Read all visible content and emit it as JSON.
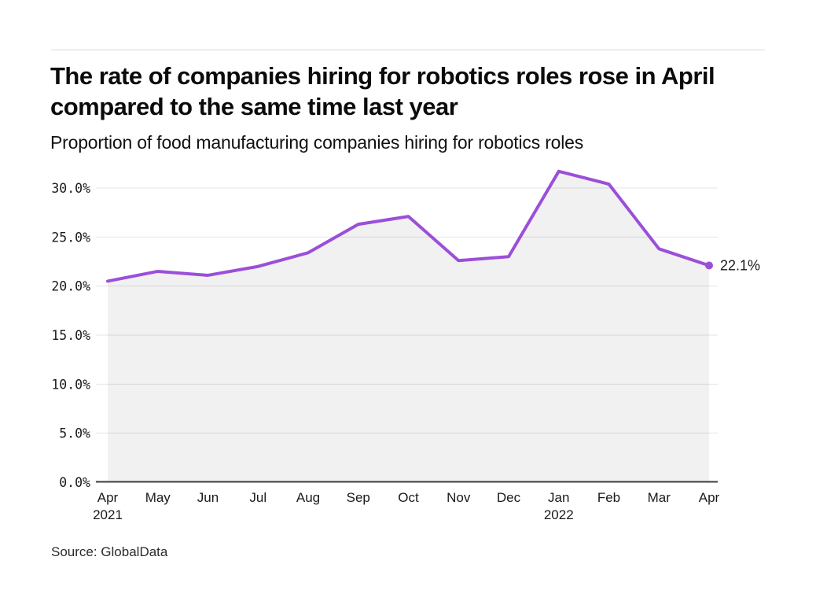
{
  "header": {
    "title": "The rate of companies hiring for robotics roles rose in April compared to the same time last year",
    "subtitle": "Proportion of food manufacturing companies hiring for robotics roles"
  },
  "footer": {
    "source": "Source: GlobalData"
  },
  "chart_data": {
    "type": "area",
    "title": "The rate of companies hiring for robotics roles rose in April compared to the same time last year",
    "subtitle": "Proportion of food manufacturing companies hiring for robotics roles",
    "categories": [
      "Apr 2021",
      "May",
      "Jun",
      "Jul",
      "Aug",
      "Sep",
      "Oct",
      "Nov",
      "Dec",
      "Jan 2022",
      "Feb",
      "Mar",
      "Apr"
    ],
    "values": [
      20.5,
      21.5,
      21.1,
      22.0,
      23.4,
      26.3,
      27.1,
      22.6,
      23.0,
      31.7,
      30.4,
      23.8,
      22.1
    ],
    "xlabel": "",
    "ylabel": "",
    "ylim": [
      0,
      32.5
    ],
    "yticks": [
      0,
      5,
      10,
      15,
      20,
      25,
      30
    ],
    "ytick_labels": [
      "0.0%",
      "5.0%",
      "10.0%",
      "15.0%",
      "20.0%",
      "25.0%",
      "30.0%"
    ],
    "grid": true,
    "legend": false,
    "annotation": {
      "text": "22.1%"
    },
    "line_color": "#9B4FD9",
    "area_color": "rgba(0,0,0,0.055)",
    "grid_color": "#e4e4e4",
    "axis_color": "#3d3d3d",
    "source": "Source: GlobalData"
  }
}
